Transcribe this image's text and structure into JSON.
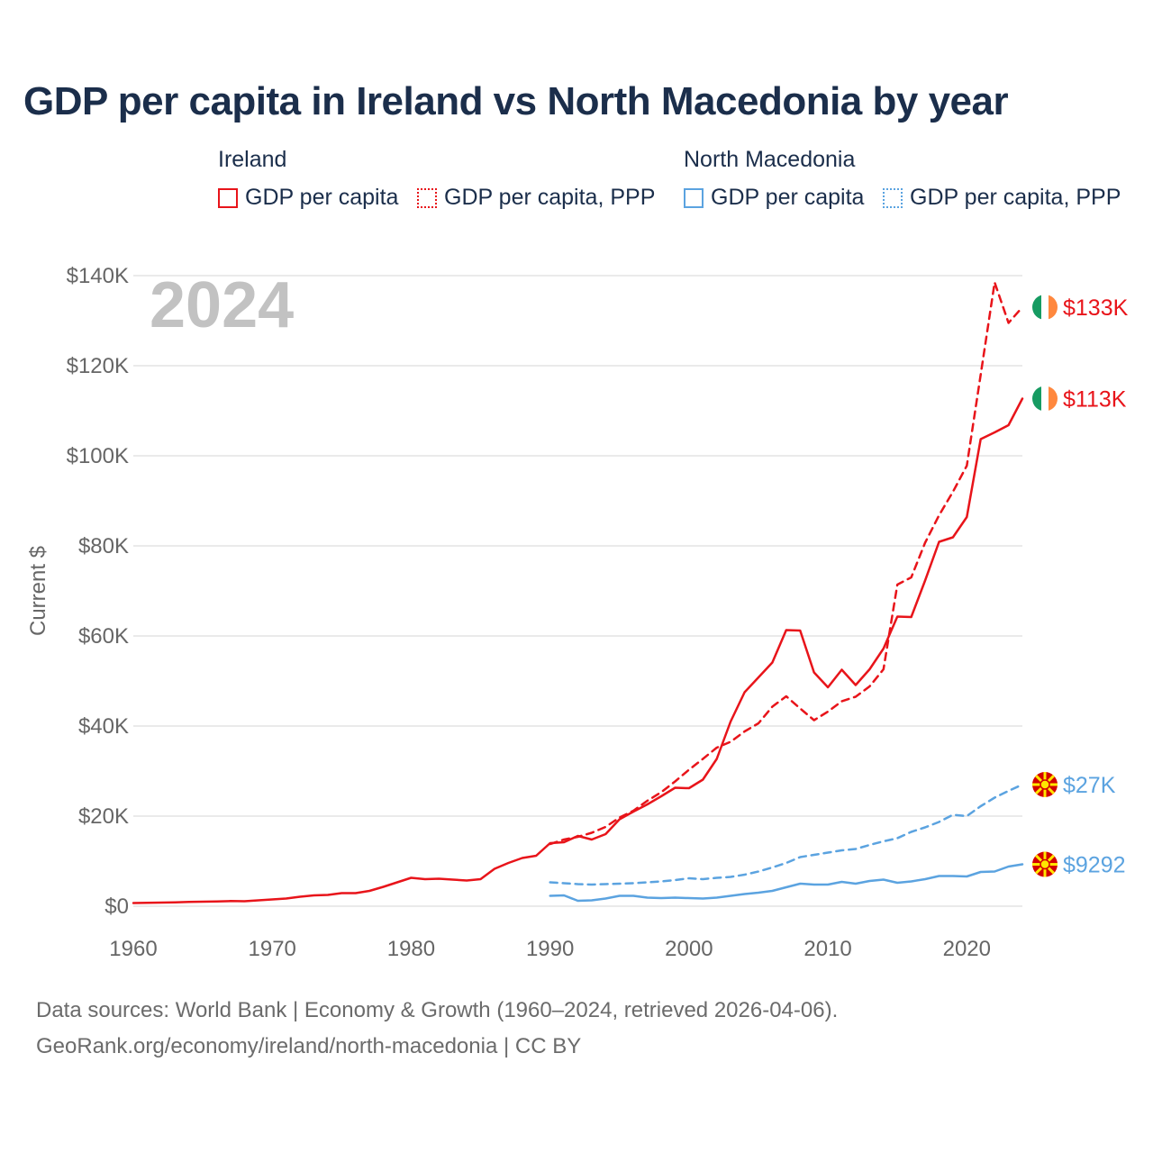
{
  "title": "GDP per capita in Ireland vs North Macedonia by year",
  "legend": {
    "ireland_title": "Ireland",
    "north_macedonia_title": "North Macedonia",
    "ireland_gdp": "GDP per capita",
    "ireland_ppp": "GDP per capita, PPP",
    "nm_gdp": "GDP per capita",
    "nm_ppp": "GDP per capita, PPP"
  },
  "colors": {
    "ireland": "#e8141a",
    "north_macedonia": "#5ba3e0",
    "grid": "#e4e4e4"
  },
  "year_watermark": "2024",
  "footer": {
    "line1": "Data sources: World Bank | Economy & Growth (1960–2024, retrieved 2026-04-06).",
    "line2": "GeoRank.org/economy/ireland/north-macedonia | CC BY"
  },
  "chart_data": {
    "type": "line",
    "title": "GDP per capita in Ireland vs North Macedonia by year",
    "ylabel": "Current $",
    "xlabel": "",
    "xlim": [
      1960,
      2024
    ],
    "ylim": [
      0,
      140000
    ],
    "x_ticks": [
      1960,
      1970,
      1980,
      1990,
      2000,
      2010,
      2020
    ],
    "y_ticks": [
      0,
      20000,
      40000,
      60000,
      80000,
      100000,
      120000,
      140000
    ],
    "y_tick_labels": [
      "$0",
      "$20K",
      "$40K",
      "$60K",
      "$80K",
      "$100K",
      "$120K",
      "$140K"
    ],
    "series": [
      {
        "name": "Ireland GDP per capita",
        "country": "ireland",
        "style": "solid",
        "end_label": "$113K",
        "x": [
          1960,
          1961,
          1962,
          1963,
          1964,
          1965,
          1966,
          1967,
          1968,
          1969,
          1970,
          1971,
          1972,
          1973,
          1974,
          1975,
          1976,
          1977,
          1978,
          1979,
          1980,
          1981,
          1982,
          1983,
          1984,
          1985,
          1986,
          1987,
          1988,
          1989,
          1990,
          1991,
          1992,
          1993,
          1994,
          1995,
          1996,
          1997,
          1998,
          1999,
          2000,
          2001,
          2002,
          2003,
          2004,
          2005,
          2006,
          2007,
          2008,
          2009,
          2010,
          2011,
          2012,
          2013,
          2014,
          2015,
          2016,
          2017,
          2018,
          2019,
          2020,
          2021,
          2022,
          2023,
          2024
        ],
        "values": [
          700,
          750,
          800,
          850,
          950,
          1000,
          1050,
          1150,
          1100,
          1300,
          1500,
          1700,
          2100,
          2400,
          2500,
          2900,
          2900,
          3400,
          4300,
          5300,
          6300,
          6000,
          6100,
          5900,
          5700,
          6000,
          8300,
          9600,
          10700,
          11200,
          14000,
          14200,
          15600,
          14800,
          16000,
          19300,
          21000,
          22600,
          24400,
          26300,
          26200,
          28100,
          32700,
          41000,
          47500,
          50800,
          54100,
          61300,
          61200,
          51900,
          48600,
          52500,
          49100,
          52600,
          57200,
          64300,
          64200,
          72300,
          80900,
          81900,
          86400,
          103700,
          105200,
          106800,
          112700
        ]
      },
      {
        "name": "Ireland GDP per capita, PPP",
        "country": "ireland",
        "style": "dashed",
        "end_label": "$133K",
        "x": [
          1990,
          1991,
          1992,
          1993,
          1994,
          1995,
          1996,
          1997,
          1998,
          1999,
          2000,
          2001,
          2002,
          2003,
          2004,
          2005,
          2006,
          2007,
          2008,
          2009,
          2010,
          2011,
          2012,
          2013,
          2014,
          2015,
          2016,
          2017,
          2018,
          2019,
          2020,
          2021,
          2022,
          2023,
          2024
        ],
        "values": [
          13800,
          14800,
          15400,
          16300,
          17600,
          19700,
          21200,
          23400,
          25300,
          27700,
          30300,
          32700,
          35200,
          36500,
          38800,
          40600,
          44300,
          46600,
          43900,
          41300,
          43200,
          45500,
          46500,
          48800,
          52600,
          71400,
          73000,
          80700,
          86800,
          92000,
          97800,
          118000,
          138500,
          129500,
          133000
        ]
      },
      {
        "name": "North Macedonia GDP per capita",
        "country": "north_macedonia",
        "style": "solid",
        "end_label": "$9292",
        "x": [
          1990,
          1991,
          1992,
          1993,
          1994,
          1995,
          1996,
          1997,
          1998,
          1999,
          2000,
          2001,
          2002,
          2003,
          2004,
          2005,
          2006,
          2007,
          2008,
          2009,
          2010,
          2011,
          2012,
          2013,
          2014,
          2015,
          2016,
          2017,
          2018,
          2019,
          2020,
          2021,
          2022,
          2023,
          2024
        ],
        "values": [
          2300,
          2400,
          1200,
          1300,
          1700,
          2300,
          2300,
          1900,
          1800,
          1900,
          1800,
          1700,
          1900,
          2300,
          2700,
          3000,
          3400,
          4200,
          5000,
          4800,
          4800,
          5400,
          5000,
          5600,
          5900,
          5200,
          5500,
          6000,
          6700,
          6700,
          6600,
          7600,
          7700,
          8800,
          9292
        ]
      },
      {
        "name": "North Macedonia GDP per capita, PPP",
        "country": "north_macedonia",
        "style": "dashed",
        "end_label": "$27K",
        "x": [
          1990,
          1991,
          1992,
          1993,
          1994,
          1995,
          1996,
          1997,
          1998,
          1999,
          2000,
          2001,
          2002,
          2003,
          2004,
          2005,
          2006,
          2007,
          2008,
          2009,
          2010,
          2011,
          2012,
          2013,
          2014,
          2015,
          2016,
          2017,
          2018,
          2019,
          2020,
          2021,
          2022,
          2023,
          2024
        ],
        "values": [
          5300,
          5100,
          4900,
          4800,
          4900,
          5000,
          5100,
          5300,
          5500,
          5800,
          6200,
          6000,
          6300,
          6500,
          7000,
          7700,
          8600,
          9600,
          10900,
          11400,
          11900,
          12400,
          12700,
          13600,
          14400,
          15100,
          16500,
          17500,
          18700,
          20300,
          20000,
          22200,
          24100,
          25600,
          27000
        ]
      }
    ]
  }
}
